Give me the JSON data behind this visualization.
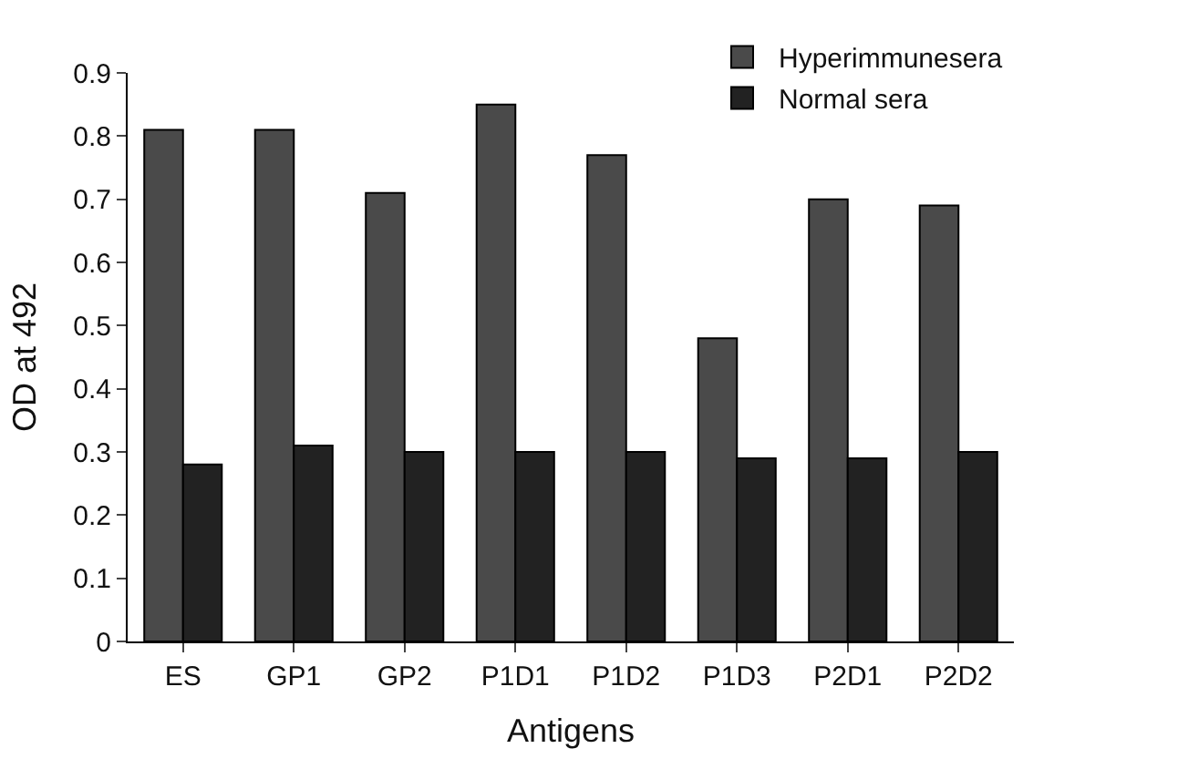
{
  "chart_data": {
    "type": "bar",
    "xlabel": "Antigens",
    "ylabel": "OD at 492",
    "categories": [
      "ES",
      "GP1",
      "GP2",
      "P1D1",
      "P1D2",
      "P1D3",
      "P2D1",
      "P2D2"
    ],
    "series": [
      {
        "name": "Hyperimmunesera",
        "color": "#4a4a4a",
        "values": [
          0.81,
          0.81,
          0.71,
          0.85,
          0.77,
          0.48,
          0.7,
          0.69
        ]
      },
      {
        "name": "Normal sera",
        "color": "#222222",
        "values": [
          0.28,
          0.31,
          0.3,
          0.3,
          0.3,
          0.29,
          0.29,
          0.3
        ]
      }
    ],
    "ylim": [
      0,
      0.9
    ],
    "yticks": [
      0,
      0.1,
      0.2,
      0.3,
      0.4,
      0.5,
      0.6,
      0.7,
      0.8,
      0.9
    ],
    "legend": "top right"
  }
}
